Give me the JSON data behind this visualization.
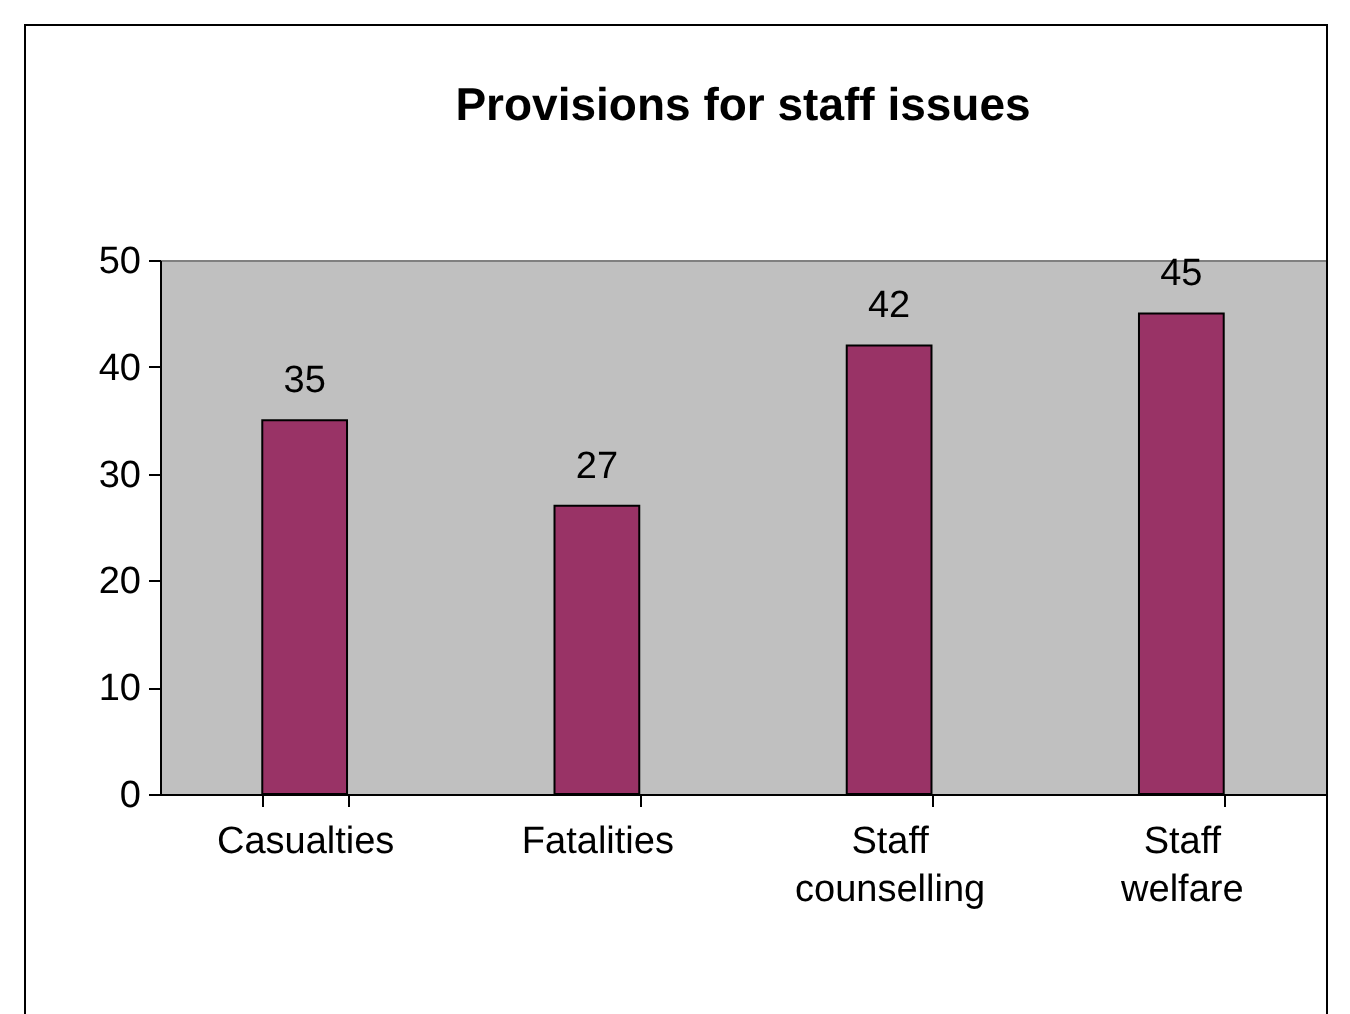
{
  "chart_data": {
    "type": "bar",
    "title": "Provisions for staff issues",
    "categories": [
      "Casualties",
      "Fatalities",
      "Staff counselling",
      "Staff welfare"
    ],
    "values": [
      35,
      27,
      42,
      45
    ],
    "color": "#993366",
    "ylim": [
      0,
      50
    ],
    "yticks": [
      0,
      10,
      20,
      30,
      40,
      50
    ],
    "grid": false,
    "data_labels": true
  }
}
